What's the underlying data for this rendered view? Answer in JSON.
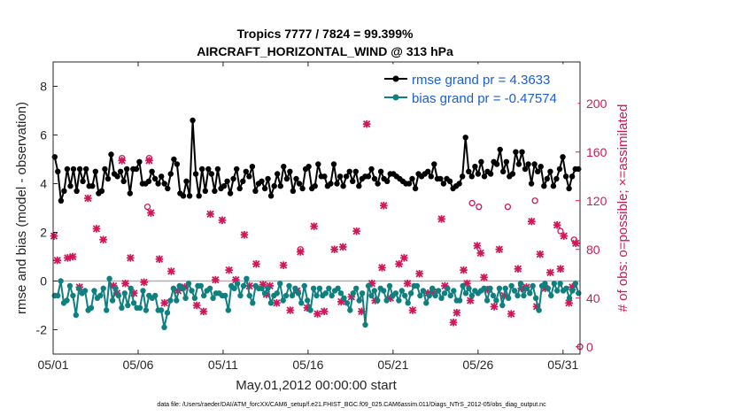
{
  "chart_data": {
    "type": "line",
    "title_line1": "Tropics 7777 / 7824 = 99.399%",
    "title_line2": "AIRCRAFT_HORIZONTAL_WIND @ 313 hPa",
    "xlabel": "May.01,2012 00:00:00 start",
    "ylabel_left": "rmse and bias (model - observation)",
    "ylabel_right": "# of obs: o=possible; ×=assimilated",
    "footer": "data file: /Users/raeder/DAI/ATM_forcXX/CAM6_setup/f.e21.FHIST_BGC.f09_025.CAM6assim.011/Diags_NTrS_2012-05/obs_diag_output.nc",
    "x_tick_labels": [
      "05/01",
      "05/06",
      "05/11",
      "05/16",
      "05/21",
      "05/26",
      "05/31"
    ],
    "x_tick_days": [
      0,
      5,
      10,
      15,
      20,
      25,
      30
    ],
    "xlim": [
      0,
      31
    ],
    "ylim_left": [
      -3,
      9
    ],
    "yticks_left": [
      -2,
      0,
      2,
      4,
      6,
      8
    ],
    "ylim_right": [
      -6,
      234
    ],
    "yticks_right": [
      0,
      40,
      80,
      120,
      160,
      200
    ],
    "legend": {
      "position": "top-right",
      "entries": [
        "rmse grand pr = 4.3633",
        "bias grand pr = -0.47574"
      ]
    },
    "colors": {
      "rmse": "#000000",
      "bias": "#0f8080",
      "obs": "#d0175a",
      "legend_text": "#1a5fd6",
      "zero_line": "#b0b0b0"
    },
    "rmse": [
      5.1,
      4.5,
      3.3,
      3.7,
      4.6,
      3.9,
      4.6,
      3.7,
      4.6,
      4.1,
      4.6,
      3.9,
      3.9,
      4.5,
      3.6,
      3.7,
      4.6,
      4.2,
      5.2,
      4.4,
      4.3,
      4.5,
      4.1,
      4.6,
      3.6,
      4.6,
      4.6,
      4.9,
      4.0,
      4.0,
      4.1,
      4.5,
      4.2,
      4.0,
      4.3,
      4.0,
      3.8,
      4.4,
      5.0,
      4.8,
      3.6,
      3.5,
      4.1,
      3.5,
      6.6,
      4.4,
      3.5,
      4.6,
      3.7,
      4.6,
      4.4,
      3.7,
      4.6,
      3.8,
      3.9,
      4.1,
      3.6,
      4.2,
      4.6,
      3.8,
      4.1,
      4.5,
      4.3,
      4.7,
      3.7,
      4.0,
      4.1,
      3.8,
      4.2,
      3.5,
      3.9,
      4.4,
      3.9,
      4.7,
      4.2,
      4.5,
      3.7,
      4.2,
      4.0,
      3.8,
      4.6,
      4.7,
      3.8,
      3.9,
      4.8,
      4.3,
      4.3,
      3.9,
      4.0,
      4.8,
      4.0,
      4.3,
      3.9,
      4.3,
      4.5,
      4.1,
      4.5,
      3.9,
      4.2,
      4.3,
      4.3,
      4.6,
      4.2,
      4.0,
      4.5,
      4.2,
      4.1,
      4.4,
      4.4,
      4.3,
      4.2,
      4.1,
      4.0,
      4.0,
      4.2,
      3.8,
      4.4,
      4.3,
      4.4,
      4.5,
      4.3,
      4.8,
      4.2,
      4.2,
      4.0,
      4.2,
      4.1,
      3.8,
      3.9,
      4.0,
      4.3,
      5.9,
      4.5,
      4.3,
      4.7,
      4.4,
      4.9,
      4.3,
      4.5,
      4.4,
      4.9,
      4.8,
      5.4,
      4.5,
      4.9,
      4.3,
      4.4,
      5.3,
      4.8,
      5.3,
      4.6,
      4.8,
      4.0,
      4.8,
      4.5,
      4.7,
      3.9,
      4.2,
      4.5,
      3.9,
      4.2,
      4.6,
      5.1,
      4.3,
      3.8,
      4.3,
      4.6,
      4.6
    ],
    "bias": [
      -0.6,
      -0.6,
      0.0,
      -0.9,
      -0.8,
      -0.2,
      -0.6,
      -1.4,
      -0.3,
      -0.5,
      -0.4,
      -1.2,
      -1.1,
      -0.4,
      -0.7,
      -0.6,
      -0.3,
      -1.2,
      0.1,
      -0.8,
      -0.3,
      -0.6,
      -1.1,
      -0.5,
      -1.0,
      -0.3,
      -0.9,
      -1.1,
      -1.1,
      -0.4,
      -1.2,
      -0.6,
      -0.7,
      -0.6,
      -1.2,
      -1.2,
      -1.9,
      -1.3,
      -0.8,
      -0.3,
      -0.8,
      -0.2,
      -0.3,
      -0.7,
      -0.1,
      -0.4,
      -0.7,
      -0.2,
      -0.2,
      -0.6,
      -0.4,
      -0.3,
      -0.7,
      -0.5,
      -0.5,
      -0.6,
      -0.6,
      -1.2,
      -0.2,
      -0.3,
      -0.1,
      -0.6,
      -0.2,
      0.1,
      -0.6,
      -0.9,
      -0.2,
      -0.3,
      -0.3,
      -0.5,
      -0.3,
      -0.9,
      -0.6,
      -0.5,
      -0.1,
      -0.8,
      -0.6,
      -0.2,
      -0.6,
      -0.3,
      -0.5,
      -0.9,
      -0.2,
      -0.8,
      -1.2,
      -0.3,
      -0.6,
      -0.3,
      -0.6,
      -0.5,
      -0.3,
      -0.6,
      -0.4,
      -0.3,
      -0.5,
      -0.7,
      -0.9,
      -1.2,
      -0.5,
      -0.3,
      -0.8,
      -0.5,
      -1.8,
      -0.2,
      -0.6,
      -0.4,
      -0.8,
      -0.3,
      -0.4,
      -0.8,
      -0.2,
      -0.6,
      -0.5,
      -0.8,
      -0.4,
      -0.6,
      -0.9,
      -0.5,
      -0.2,
      -0.2,
      -0.6,
      -0.4,
      -0.9,
      -0.6,
      -0.3,
      -0.6,
      -0.4,
      -0.7,
      -0.5,
      -0.3,
      -0.6,
      -0.4,
      -0.8,
      -0.8,
      -0.2,
      -0.5,
      -0.3,
      -0.6,
      -0.4,
      -0.5,
      -0.4,
      -0.3,
      -0.8,
      -0.3,
      -0.6,
      -0.8,
      -0.3,
      -1.0,
      -0.3,
      -0.7,
      -0.2,
      -0.4,
      -0.6,
      -0.1,
      -0.6,
      -0.3,
      -0.5,
      -0.2,
      -0.7,
      -1.2,
      -0.2,
      -0.1,
      -0.3,
      -0.6,
      -0.1,
      -0.4,
      -0.1,
      -0.4,
      -0.3,
      -0.7,
      -0.4,
      -0.1,
      -0.5
    ],
    "obs_assimilated": [
      {
        "day": 0.05,
        "value": 91
      },
      {
        "day": 0.25,
        "value": 71
      },
      {
        "day": 0.85,
        "value": 73
      },
      {
        "day": 1.15,
        "value": 74
      },
      {
        "day": 1.55,
        "value": 49
      },
      {
        "day": 2.05,
        "value": 122
      },
      {
        "day": 2.55,
        "value": 97
      },
      {
        "day": 2.95,
        "value": 88
      },
      {
        "day": 3.55,
        "value": 50
      },
      {
        "day": 3.75,
        "value": 44
      },
      {
        "day": 4.05,
        "value": 153
      },
      {
        "day": 4.25,
        "value": 52
      },
      {
        "day": 4.55,
        "value": 73
      },
      {
        "day": 4.75,
        "value": 44
      },
      {
        "day": 5.35,
        "value": 53
      },
      {
        "day": 5.65,
        "value": 153
      },
      {
        "day": 5.75,
        "value": 110
      },
      {
        "day": 6.25,
        "value": 72
      },
      {
        "day": 6.55,
        "value": 36
      },
      {
        "day": 6.95,
        "value": 62
      },
      {
        "day": 7.35,
        "value": 46
      },
      {
        "day": 7.75,
        "value": 49
      },
      {
        "day": 8.45,
        "value": 34
      },
      {
        "day": 8.85,
        "value": 29
      },
      {
        "day": 9.25,
        "value": 109
      },
      {
        "day": 9.55,
        "value": 55
      },
      {
        "day": 9.95,
        "value": 104
      },
      {
        "day": 10.35,
        "value": 63
      },
      {
        "day": 10.75,
        "value": 55
      },
      {
        "day": 11.25,
        "value": 92
      },
      {
        "day": 11.55,
        "value": 50
      },
      {
        "day": 11.95,
        "value": 68
      },
      {
        "day": 12.35,
        "value": 51
      },
      {
        "day": 12.55,
        "value": 43
      },
      {
        "day": 12.75,
        "value": 50
      },
      {
        "day": 13.15,
        "value": 36
      },
      {
        "day": 13.55,
        "value": 67
      },
      {
        "day": 13.95,
        "value": 30
      },
      {
        "day": 14.35,
        "value": 46
      },
      {
        "day": 14.55,
        "value": 78
      },
      {
        "day": 14.95,
        "value": 32
      },
      {
        "day": 15.35,
        "value": 99
      },
      {
        "day": 15.55,
        "value": 27
      },
      {
        "day": 15.95,
        "value": 29
      },
      {
        "day": 16.55,
        "value": 80
      },
      {
        "day": 16.95,
        "value": 37
      },
      {
        "day": 17.05,
        "value": 82
      },
      {
        "day": 17.55,
        "value": 41
      },
      {
        "day": 17.85,
        "value": 95
      },
      {
        "day": 18.15,
        "value": 29
      },
      {
        "day": 18.45,
        "value": 183
      },
      {
        "day": 18.75,
        "value": 52
      },
      {
        "day": 18.95,
        "value": 38
      },
      {
        "day": 19.35,
        "value": 65
      },
      {
        "day": 19.45,
        "value": 116
      },
      {
        "day": 19.85,
        "value": 40
      },
      {
        "day": 20.35,
        "value": 68
      },
      {
        "day": 20.65,
        "value": 73
      },
      {
        "day": 20.85,
        "value": 52
      },
      {
        "day": 21.15,
        "value": 30
      },
      {
        "day": 21.55,
        "value": 60
      },
      {
        "day": 22.05,
        "value": 44
      },
      {
        "day": 22.35,
        "value": 45
      },
      {
        "day": 22.85,
        "value": 105
      },
      {
        "day": 23.05,
        "value": 50
      },
      {
        "day": 23.55,
        "value": 20
      },
      {
        "day": 23.75,
        "value": 28
      },
      {
        "day": 24.15,
        "value": 63
      },
      {
        "day": 24.35,
        "value": 52
      },
      {
        "day": 24.55,
        "value": 38
      },
      {
        "day": 24.95,
        "value": 83
      },
      {
        "day": 25.15,
        "value": 77
      },
      {
        "day": 25.35,
        "value": 57
      },
      {
        "day": 25.55,
        "value": 47
      },
      {
        "day": 25.95,
        "value": 33
      },
      {
        "day": 26.25,
        "value": 80
      },
      {
        "day": 26.55,
        "value": 42
      },
      {
        "day": 26.95,
        "value": 27
      },
      {
        "day": 27.35,
        "value": 64
      },
      {
        "day": 27.55,
        "value": 48
      },
      {
        "day": 27.85,
        "value": 49
      },
      {
        "day": 28.15,
        "value": 103
      },
      {
        "day": 28.45,
        "value": 33
      },
      {
        "day": 28.65,
        "value": 76
      },
      {
        "day": 28.95,
        "value": 48
      },
      {
        "day": 29.25,
        "value": 61
      },
      {
        "day": 29.65,
        "value": 100
      },
      {
        "day": 29.85,
        "value": 64
      },
      {
        "day": 30.05,
        "value": 91
      },
      {
        "day": 30.35,
        "value": 36
      },
      {
        "day": 30.55,
        "value": 49
      },
      {
        "day": 30.75,
        "value": 85
      }
    ],
    "obs_possible": [
      {
        "day": 4.05,
        "value": 155
      },
      {
        "day": 5.55,
        "value": 115
      },
      {
        "day": 5.65,
        "value": 155
      },
      {
        "day": 14.55,
        "value": 80
      },
      {
        "day": 24.65,
        "value": 118
      },
      {
        "day": 25.05,
        "value": 115
      },
      {
        "day": 26.75,
        "value": 115
      },
      {
        "day": 28.35,
        "value": 120
      },
      {
        "day": 29.85,
        "value": 95
      },
      {
        "day": 30.65,
        "value": 88
      },
      {
        "day": 31.0,
        "value": 0
      }
    ]
  }
}
